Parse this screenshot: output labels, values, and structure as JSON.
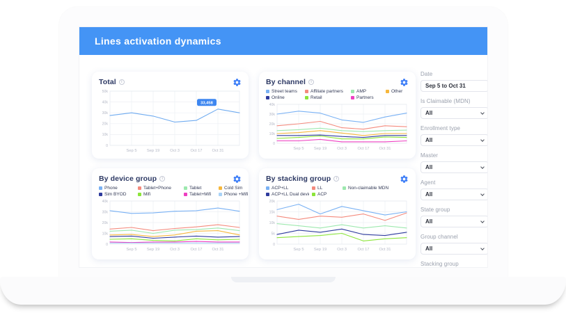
{
  "header": {
    "title": "Lines activation dynamics"
  },
  "colors": {
    "header_bar": "#4494f5",
    "accent_gear": "#3d7ef7",
    "tooltip_bg": "#3d86f0",
    "grid": "#edeff4",
    "axis_text": "#b4b8c6"
  },
  "sidebar": {
    "filters": [
      {
        "label": "Date",
        "value": "Sep 5 to Oct 31",
        "type": "input"
      },
      {
        "label": "Is Claimable (MDN)",
        "value": "All",
        "type": "select"
      },
      {
        "label": "Enrollment type",
        "value": "All",
        "type": "select"
      },
      {
        "label": "Master",
        "value": "All",
        "type": "select"
      },
      {
        "label": "Agent",
        "value": "All",
        "type": "select"
      },
      {
        "label": "State group",
        "value": "All",
        "type": "select"
      },
      {
        "label": "Group channel",
        "value": "All",
        "type": "select"
      },
      {
        "label": "Stacking group",
        "value": "All",
        "type": "select"
      }
    ]
  },
  "chart_data": [
    {
      "type": "line",
      "title": "Total",
      "categories": [
        "Sep 5",
        "Sep 19",
        "Oct 3",
        "Oct 17",
        "Oct 31"
      ],
      "x_layout": "7 points per series: left chart edge, the 5 date ticks, right chart edge",
      "ylim": [
        0,
        50000
      ],
      "yticks": [
        "50k",
        "40k",
        "30k",
        "20k",
        "10k",
        "0"
      ],
      "grid": true,
      "legend": false,
      "tooltip": {
        "text": "33,458",
        "series": "Total",
        "category": "Oct 31",
        "point_index": 5
      },
      "series": [
        {
          "name": "Total",
          "color": "#6fabf0",
          "values": [
            27500,
            30000,
            27000,
            21500,
            23000,
            33458,
            30000
          ]
        }
      ]
    },
    {
      "type": "line",
      "title": "By channel",
      "categories": [
        "Sep 5",
        "Sep 19",
        "Oct 3",
        "Oct 17",
        "Oct 31"
      ],
      "x_layout": "7 points per series: left chart edge, the 5 date ticks, right chart edge",
      "ylim": [
        0,
        40000
      ],
      "yticks": [
        "40k",
        "30k",
        "20k",
        "10k",
        "0"
      ],
      "grid": true,
      "legend": true,
      "series": [
        {
          "name": "Street teams",
          "color": "#79b1f4",
          "values": [
            30000,
            33000,
            31000,
            24000,
            21500,
            27000,
            31000
          ]
        },
        {
          "name": "Affiliate partners",
          "color": "#f48a7d",
          "values": [
            18000,
            20000,
            22500,
            16000,
            14500,
            18000,
            17000
          ]
        },
        {
          "name": "AMP",
          "color": "#9de8ae",
          "values": [
            13000,
            14000,
            15500,
            13000,
            12000,
            13000,
            13500
          ]
        },
        {
          "name": "Other",
          "color": "#f6b73c",
          "values": [
            10000,
            11000,
            13000,
            10500,
            8000,
            10000,
            10000
          ]
        },
        {
          "name": "Online",
          "color": "#2e3b9d",
          "values": [
            8000,
            8000,
            8500,
            7000,
            6000,
            8000,
            8000
          ]
        },
        {
          "name": "Retail",
          "color": "#8ce53a",
          "values": [
            5000,
            6000,
            7500,
            4500,
            4500,
            6500,
            6000
          ]
        },
        {
          "name": "Partners",
          "color": "#ee3fc1",
          "values": [
            2500,
            2500,
            4000,
            1500,
            1500,
            1500,
            2500
          ]
        }
      ]
    },
    {
      "type": "line",
      "title": "By device group",
      "categories": [
        "Sep 5",
        "Sep 19",
        "Oct 3",
        "Oct 17",
        "Oct 31"
      ],
      "x_layout": "7 points per series: left chart edge, the 5 date ticks, right chart edge",
      "ylim": [
        0,
        40000
      ],
      "yticks": [
        "40k",
        "30k",
        "20k",
        "10k",
        "0"
      ],
      "grid": true,
      "legend": true,
      "series": [
        {
          "name": "Phone",
          "color": "#79b1f4",
          "values": [
            31000,
            28500,
            29000,
            30500,
            31000,
            33500,
            30500
          ]
        },
        {
          "name": "Tablet+Phone",
          "color": "#f48a7d",
          "values": [
            14000,
            15500,
            12500,
            14500,
            16000,
            18000,
            15500
          ]
        },
        {
          "name": "Tablet",
          "color": "#9de8ae",
          "values": [
            12000,
            13000,
            10000,
            13000,
            13500,
            15000,
            12500
          ]
        },
        {
          "name": "Cold Sim",
          "color": "#f6b73c",
          "values": [
            8500,
            9000,
            7000,
            8500,
            12000,
            12500,
            8500
          ]
        },
        {
          "name": "Sim BYOD",
          "color": "#2e3b9d",
          "values": [
            7000,
            7500,
            5500,
            6500,
            7500,
            6500,
            7000
          ]
        },
        {
          "name": "Mifi",
          "color": "#8ce53a",
          "values": [
            4500,
            5000,
            3500,
            3000,
            5000,
            4000,
            4500
          ]
        },
        {
          "name": "Tablet+Mifi",
          "color": "#ee3fc1",
          "values": [
            2000,
            1500,
            2000,
            2000,
            2500,
            2000,
            2000
          ]
        },
        {
          "name": "Phone +Mifi",
          "color": "#a9d3f7",
          "values": [
            1000,
            1000,
            1000,
            1000,
            1000,
            1000,
            1000
          ]
        }
      ]
    },
    {
      "type": "line",
      "title": "By stacking group",
      "categories": [
        "Sep 5",
        "Sep 19",
        "Oct 3",
        "Oct 17",
        "Oct 31"
      ],
      "x_layout": "7 points per series: left chart edge, the 5 date ticks, right chart edge",
      "ylim": [
        0,
        20000
      ],
      "yticks": [
        "20k",
        "15k",
        "10k",
        "5k",
        "0"
      ],
      "grid": true,
      "legend": true,
      "series": [
        {
          "name": "ACP+LL",
          "color": "#79b1f4",
          "values": [
            16000,
            18500,
            14000,
            17500,
            15500,
            13500,
            15000
          ]
        },
        {
          "name": "LL",
          "color": "#f48a7d",
          "values": [
            13000,
            11500,
            13000,
            12500,
            14000,
            11000,
            14500
          ]
        },
        {
          "name": "Non-claimable MDN",
          "color": "#9de8ae",
          "values": [
            9500,
            8500,
            7500,
            9000,
            7500,
            8500,
            7500
          ]
        },
        {
          "name": "ACP+LL Dual device",
          "color": "#2e3b9d",
          "values": [
            4500,
            6500,
            5500,
            7000,
            4500,
            4000,
            5500
          ]
        },
        {
          "name": "ACP",
          "color": "#8ce53a",
          "values": [
            3000,
            3500,
            4000,
            5000,
            1500,
            2500,
            3000
          ]
        }
      ]
    }
  ]
}
